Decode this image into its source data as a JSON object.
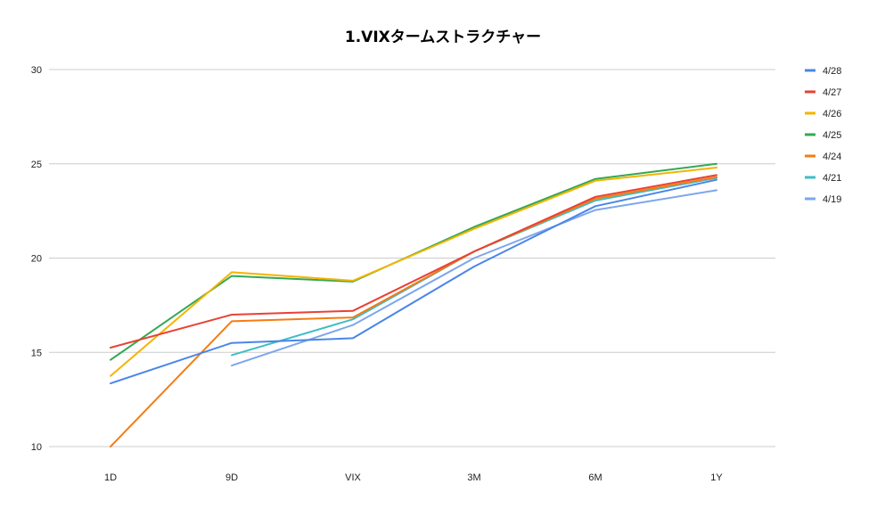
{
  "chart_data": {
    "type": "line",
    "title": "1.VIXタームストラクチャー",
    "xlabel": "",
    "ylabel": "",
    "categories": [
      "1D",
      "9D",
      "VIX",
      "3M",
      "6M",
      "1Y"
    ],
    "ylim": [
      10,
      30
    ],
    "yticks": [
      30,
      25,
      20,
      15,
      10
    ],
    "grid": true,
    "legend_position": "right",
    "series": [
      {
        "name": "4/28",
        "color": "#4a86e8",
        "values": [
          13.35,
          15.5,
          15.75,
          19.55,
          22.75,
          24.15
        ]
      },
      {
        "name": "4/27",
        "color": "#e84235",
        "values": [
          15.25,
          17.0,
          17.2,
          20.35,
          23.25,
          24.4
        ]
      },
      {
        "name": "4/26",
        "color": "#f4b400",
        "values": [
          13.75,
          19.25,
          18.8,
          21.55,
          24.1,
          24.8
        ]
      },
      {
        "name": "4/25",
        "color": "#34a853",
        "values": [
          14.6,
          19.05,
          18.75,
          21.65,
          24.2,
          25.0
        ]
      },
      {
        "name": "4/24",
        "color": "#f57c13",
        "values": [
          10.0,
          16.65,
          16.85,
          20.35,
          23.15,
          24.3
        ]
      },
      {
        "name": "4/21",
        "color": "#3fbdc6",
        "values": [
          null,
          14.85,
          16.75,
          20.35,
          23.05,
          24.25
        ]
      },
      {
        "name": "4/19",
        "color": "#7ea6eb",
        "values": [
          null,
          14.3,
          16.45,
          20.0,
          22.55,
          23.6
        ]
      }
    ]
  }
}
